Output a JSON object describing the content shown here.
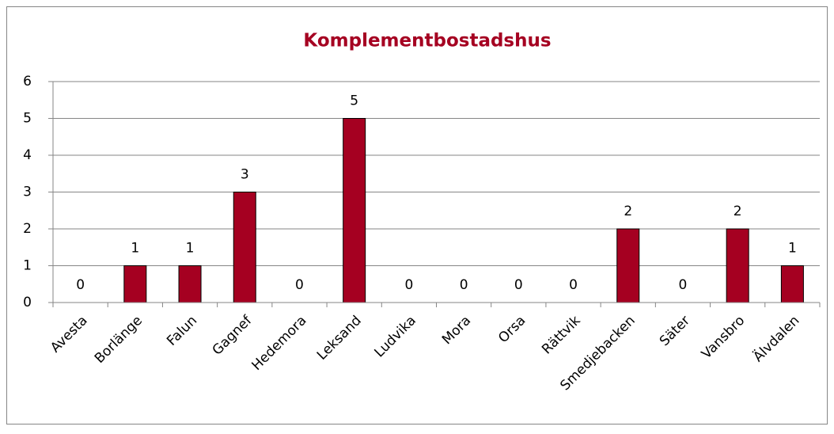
{
  "chart_data": {
    "type": "bar",
    "title": "Komplementbostadshus",
    "categories": [
      "Avesta",
      "Borlänge",
      "Falun",
      "Gagnef",
      "Hedemora",
      "Leksand",
      "Ludvika",
      "Mora",
      "Orsa",
      "Rättvik",
      "Smedjebacken",
      "Säter",
      "Vansbro",
      "Älvdalen"
    ],
    "values": [
      0,
      1,
      1,
      3,
      0,
      5,
      0,
      0,
      0,
      0,
      2,
      0,
      2,
      1
    ],
    "color": "#a50021",
    "ylim": [
      0,
      6
    ],
    "yticks": [
      0,
      1,
      2,
      3,
      4,
      5,
      6
    ],
    "grid": true
  }
}
